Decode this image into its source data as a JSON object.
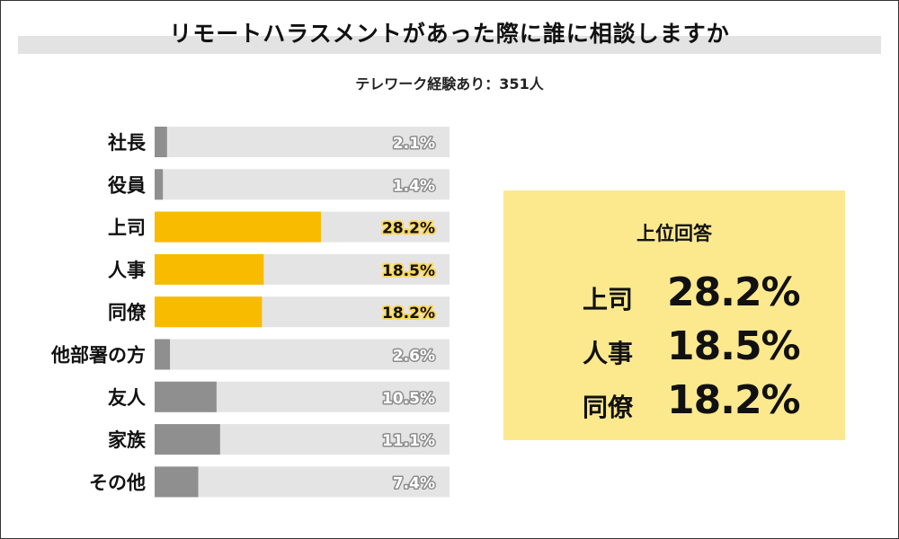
{
  "title": "リモートハラスメントがあった際に誰に相談しますか",
  "subtitle": "テレワーク経験あり：351人",
  "chart_data": {
    "type": "bar",
    "orientation": "horizontal",
    "categories": [
      "社長",
      "役員",
      "上司",
      "人事",
      "同僚",
      "他部署の方",
      "友人",
      "家族",
      "その他"
    ],
    "values": [
      2.1,
      1.4,
      28.2,
      18.5,
      18.2,
      2.6,
      10.5,
      11.1,
      7.4
    ],
    "value_labels": [
      "2.1%",
      "1.4%",
      "28.2%",
      "18.5%",
      "18.2%",
      "2.6%",
      "10.5%",
      "11.1%",
      "7.4%"
    ],
    "highlighted": [
      false,
      false,
      true,
      true,
      true,
      false,
      false,
      false,
      false
    ],
    "unit": "%",
    "xlim": [
      0,
      50
    ],
    "colors": {
      "bar": "#8f8f8f",
      "highlight": "#f8bb00",
      "track": "#e4e4e4"
    }
  },
  "panel": {
    "title": "上位回答",
    "rows": [
      {
        "label": "上司",
        "value": "28.2%"
      },
      {
        "label": "人事",
        "value": "18.5%"
      },
      {
        "label": "同僚",
        "value": "18.2%"
      }
    ],
    "background": "#fce98e"
  }
}
